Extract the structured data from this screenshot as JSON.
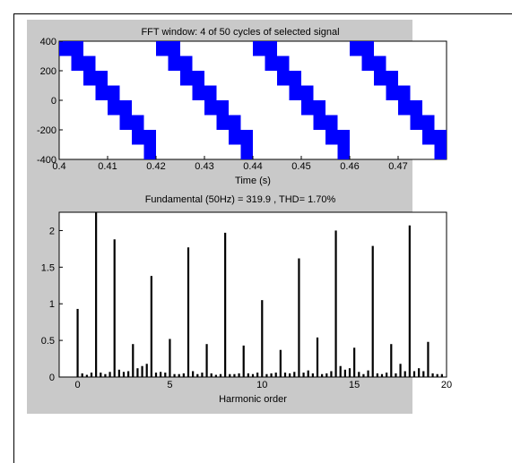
{
  "chart_data": [
    {
      "type": "step-waveform",
      "title": "FFT window: 4 of 50 cycles of selected signal",
      "xlabel": "Time (s)",
      "ylabel": "",
      "xlim": [
        0.4,
        0.48
      ],
      "ylim": [
        -400,
        400
      ],
      "xticks": [
        "0.4",
        "0.41",
        "0.42",
        "0.43",
        "0.44",
        "0.45",
        "0.46",
        "0.47"
      ],
      "yticks": [
        "400",
        "200",
        "0",
        "-200",
        "-400"
      ],
      "xtick_values": [
        0.4,
        0.41,
        0.42,
        0.43,
        0.44,
        0.45,
        0.46,
        0.47
      ],
      "ytick_values": [
        400,
        200,
        0,
        -200,
        -400
      ],
      "frequency_hz": 50,
      "cycles_shown": 4,
      "levels": [
        400,
        300,
        200,
        100,
        0,
        -100,
        -200,
        -300
      ],
      "color": "#0000ff"
    },
    {
      "type": "bar",
      "title": "Fundamental (50Hz) = 319.9 , THD= 1.70%",
      "xlabel": "Harmonic order",
      "ylabel": "",
      "xlim": [
        -1,
        20
      ],
      "ylim": [
        0,
        2.25
      ],
      "xticks": [
        "0",
        "5",
        "10",
        "15",
        "20"
      ],
      "yticks": [
        "2",
        "1.5",
        "1",
        "0.5",
        "0"
      ],
      "xtick_values": [
        0,
        5,
        10,
        15,
        20
      ],
      "ytick_values": [
        2,
        1.5,
        1,
        0.5,
        0
      ],
      "bar_color": "#000000",
      "series": [
        {
          "x": [
            0,
            0.25,
            0.5,
            0.75,
            1,
            1.25,
            1.5,
            1.75,
            2,
            2.25,
            2.5,
            2.75,
            3,
            3.25,
            3.5,
            3.75,
            4,
            4.25,
            4.5,
            4.75,
            5,
            5.25,
            5.5,
            5.75,
            6,
            6.25,
            6.5,
            6.75,
            7,
            7.25,
            7.5,
            7.75,
            8,
            8.25,
            8.5,
            8.75,
            9,
            9.25,
            9.5,
            9.75,
            10,
            10.25,
            10.5,
            10.75,
            11,
            11.25,
            11.5,
            11.75,
            12,
            12.25,
            12.5,
            12.75,
            13,
            13.25,
            13.5,
            13.75,
            14,
            14.25,
            14.5,
            14.75,
            15,
            15.25,
            15.5,
            15.75,
            16,
            16.25,
            16.5,
            16.75,
            17,
            17.25,
            17.5,
            17.75,
            18,
            18.25,
            18.5,
            18.75,
            19,
            19.25,
            19.5,
            19.75
          ],
          "values": [
            0.93,
            0.05,
            0.03,
            0.06,
            2.25,
            0.06,
            0.04,
            0.07,
            1.88,
            0.1,
            0.07,
            0.08,
            0.45,
            0.12,
            0.15,
            0.18,
            1.38,
            0.06,
            0.07,
            0.06,
            0.52,
            0.04,
            0.04,
            0.05,
            1.77,
            0.08,
            0.04,
            0.06,
            0.45,
            0.05,
            0.03,
            0.04,
            1.97,
            0.04,
            0.04,
            0.05,
            0.43,
            0.05,
            0.04,
            0.06,
            1.05,
            0.04,
            0.05,
            0.06,
            0.37,
            0.06,
            0.05,
            0.07,
            1.62,
            0.06,
            0.09,
            0.05,
            0.54,
            0.04,
            0.05,
            0.08,
            2.0,
            0.15,
            0.1,
            0.12,
            0.4,
            0.07,
            0.04,
            0.09,
            1.79,
            0.05,
            0.04,
            0.06,
            0.45,
            0.05,
            0.18,
            0.08,
            2.07,
            0.08,
            0.12,
            0.08,
            0.48,
            0.05,
            0.04,
            0.04
          ]
        }
      ]
    }
  ]
}
